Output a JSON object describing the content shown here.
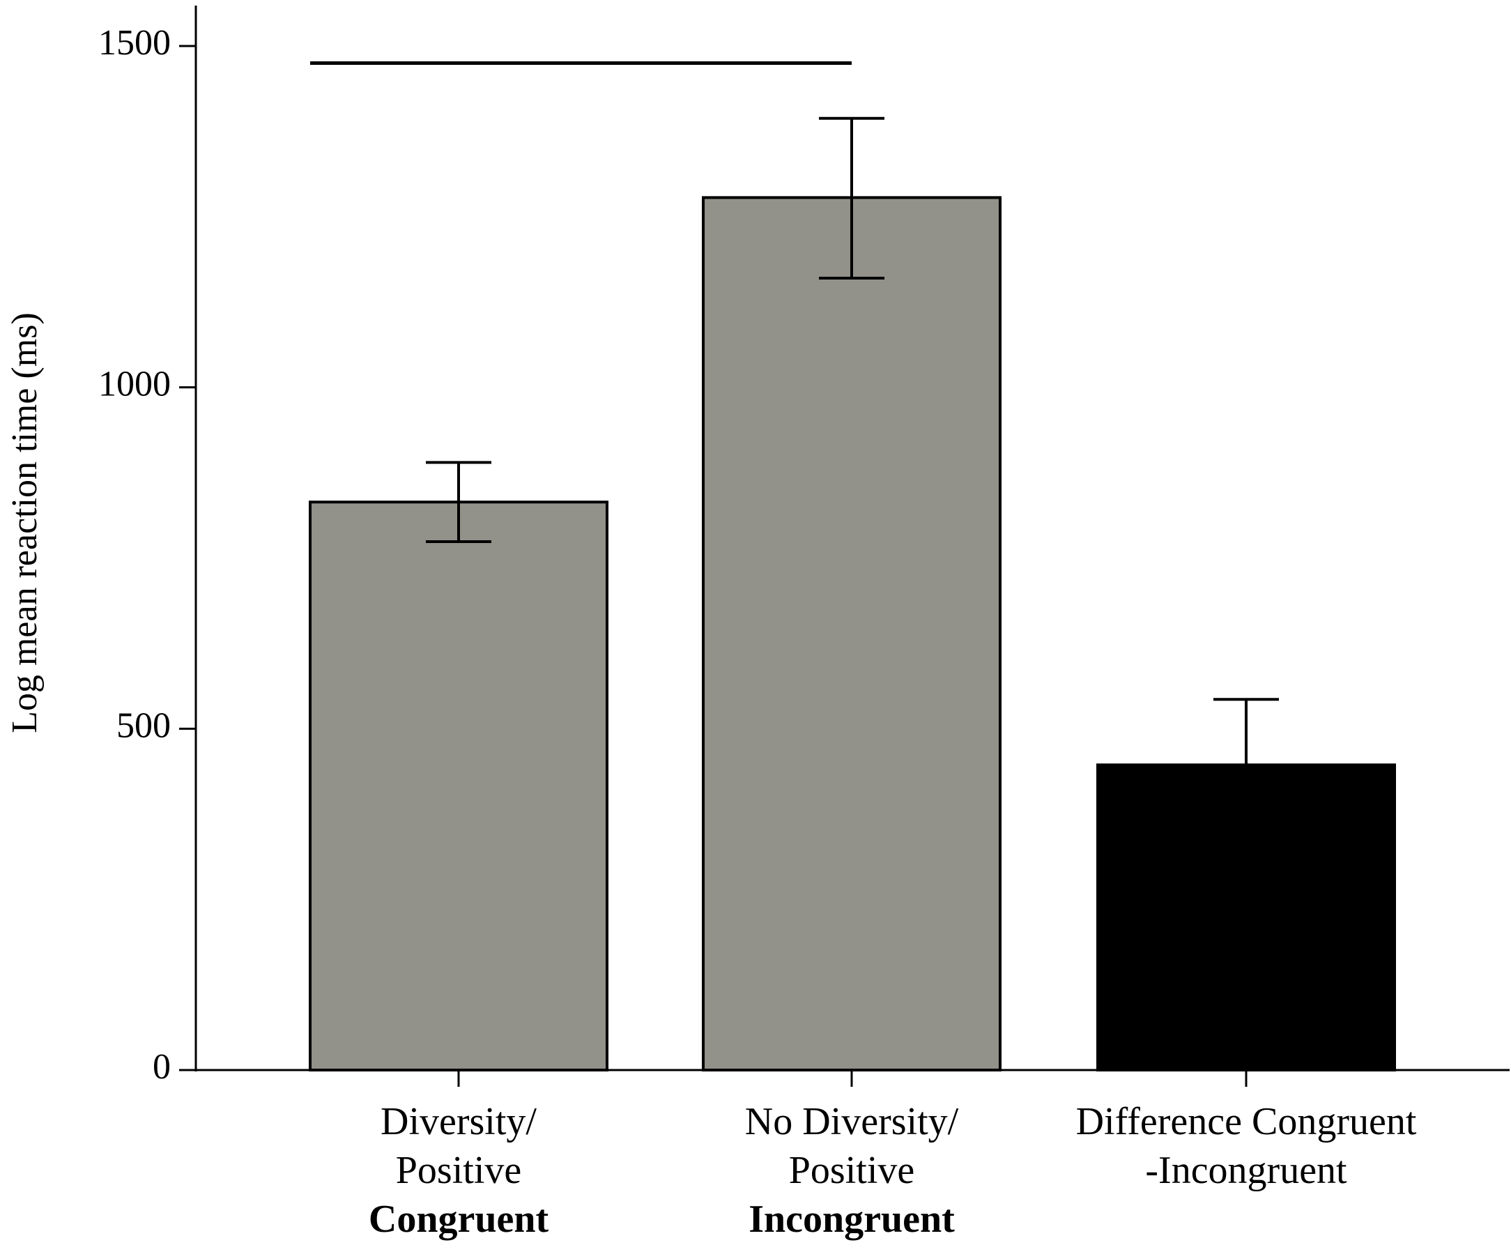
{
  "chart_data": {
    "type": "bar",
    "title": "",
    "xlabel": "",
    "ylabel": "Log mean reaction time (ms)",
    "ylim": [
      0,
      1500
    ],
    "yticks": [
      0,
      500,
      1000,
      1500
    ],
    "grid": false,
    "categories": [
      {
        "lines": [
          "Diversity/",
          "Positive"
        ],
        "bold_line": "Congruent"
      },
      {
        "lines": [
          "No Diversity/",
          "Positive"
        ],
        "bold_line": "Incongruent"
      },
      {
        "lines": [
          "Difference Congruent",
          "-Incongruent"
        ],
        "bold_line": ""
      }
    ],
    "values": [
      832,
      1278,
      447
    ],
    "error_upper": [
      890,
      1394,
      543
    ],
    "error_lower": [
      774,
      1160,
      null
    ],
    "colors": [
      "#92918a",
      "#92918a",
      "#000000"
    ],
    "significance_bracket": {
      "from_category": 0,
      "to_category": 1,
      "y": 1475
    }
  }
}
